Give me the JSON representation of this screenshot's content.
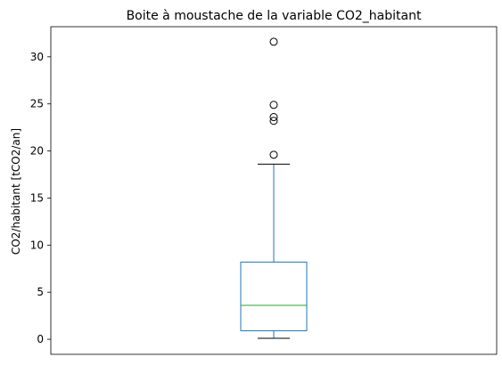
{
  "chart_data": {
    "type": "boxplot",
    "title": "Boite à moustache de la variable CO2_habitant",
    "xlabel": "",
    "ylabel": "CO2/habitant [tCO2/an]",
    "ylim": [
      -1.6,
      33.2
    ],
    "yticks": [
      0,
      5,
      10,
      15,
      20,
      25,
      30
    ],
    "grid": false,
    "box": {
      "q1": 0.9,
      "median": 3.6,
      "q3": 8.2,
      "whisker_low": 0.1,
      "whisker_high": 18.6
    },
    "outliers": [
      19.6,
      23.2,
      23.6,
      24.9,
      31.6
    ],
    "colors": {
      "box": "#1f77b4",
      "median": "#2ca02c",
      "whisker": "#1f77b4",
      "cap": "#000000",
      "outlier": "#000000"
    }
  }
}
